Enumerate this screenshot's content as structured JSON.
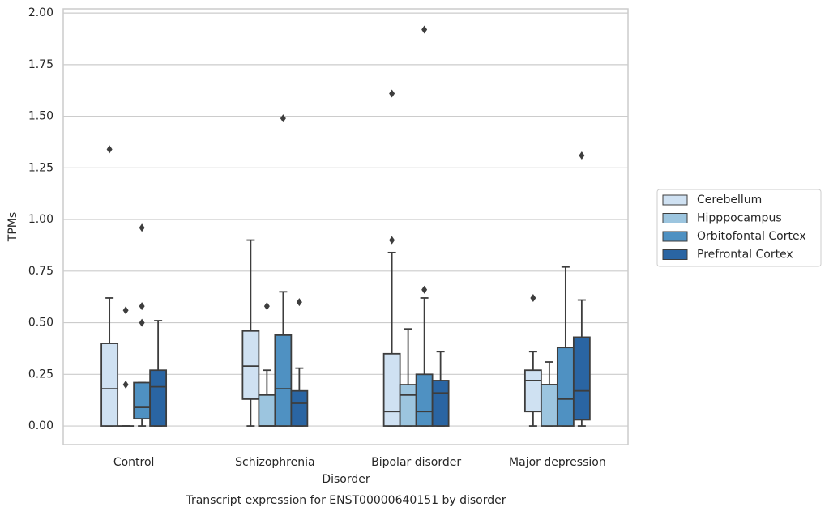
{
  "chart_data": {
    "type": "box",
    "title": "Transcript expression for ENST00000640151 by disorder",
    "x_label": "Disorder",
    "y_label": "TPMs",
    "categories": [
      "Control",
      "Schizophrenia",
      "Bipolar disorder",
      "Major depression"
    ],
    "ylim": [
      -0.09,
      2.02
    ],
    "yticks": [
      {
        "value": 0,
        "label": "0.00"
      },
      {
        "value": 0.25,
        "label": "0.25"
      },
      {
        "value": 0.5,
        "label": "0.50"
      },
      {
        "value": 0.75,
        "label": "0.75"
      },
      {
        "value": 1,
        "label": "1.00"
      },
      {
        "value": 1.25,
        "label": "1.25"
      },
      {
        "value": 1.5,
        "label": "1.50"
      },
      {
        "value": 1.75,
        "label": "1.75"
      },
      {
        "value": 2,
        "label": "2.00"
      }
    ],
    "grid": true,
    "legend": "right",
    "series": [
      {
        "name": "Cerebellum",
        "color": "#cfe1f2",
        "boxes": [
          {
            "whislo": 0,
            "q1": 0,
            "med": 0.18,
            "q3": 0.4,
            "whishi": 0.62,
            "fliers": [
              1.34
            ]
          },
          {
            "whislo": 0,
            "q1": 0.13,
            "med": 0.29,
            "q3": 0.46,
            "whishi": 0.9,
            "fliers": []
          },
          {
            "whislo": 0,
            "q1": 0,
            "med": 0.07,
            "q3": 0.35,
            "whishi": 0.84,
            "fliers": [
              0.9,
              1.61
            ]
          },
          {
            "whislo": 0,
            "q1": 0.07,
            "med": 0.22,
            "q3": 0.27,
            "whishi": 0.36,
            "fliers": [
              0.62
            ]
          }
        ]
      },
      {
        "name": "Hipppocampus",
        "color": "#9cc5df",
        "boxes": [
          {
            "whislo": 0,
            "q1": 0,
            "med": 0,
            "q3": 0,
            "whishi": 0,
            "fliers": [
              0.2,
              0.56
            ]
          },
          {
            "whislo": 0,
            "q1": 0,
            "med": 0,
            "q3": 0.15,
            "whishi": 0.27,
            "fliers": [
              0.58
            ]
          },
          {
            "whislo": 0,
            "q1": 0,
            "med": 0.15,
            "q3": 0.2,
            "whishi": 0.47,
            "fliers": []
          },
          {
            "whislo": 0,
            "q1": 0,
            "med": 0.2,
            "q3": 0.2,
            "whishi": 0.31,
            "fliers": []
          }
        ]
      },
      {
        "name": "Orbitofontal Cortex",
        "color": "#4f91c2",
        "boxes": [
          {
            "whislo": 0,
            "q1": 0.035,
            "med": 0.09,
            "q3": 0.21,
            "whishi": 0.21,
            "fliers": [
              0.5,
              0.58,
              0.96
            ]
          },
          {
            "whislo": 0,
            "q1": 0,
            "med": 0.18,
            "q3": 0.44,
            "whishi": 0.65,
            "fliers": [
              1.49
            ]
          },
          {
            "whislo": 0,
            "q1": 0,
            "med": 0.07,
            "q3": 0.25,
            "whishi": 0.62,
            "fliers": [
              0.66,
              1.92
            ]
          },
          {
            "whislo": 0,
            "q1": 0,
            "med": 0.13,
            "q3": 0.38,
            "whishi": 0.77,
            "fliers": []
          }
        ]
      },
      {
        "name": "Prefrontal Cortex",
        "color": "#2a65a3",
        "boxes": [
          {
            "whislo": 0,
            "q1": 0,
            "med": 0.19,
            "q3": 0.27,
            "whishi": 0.51,
            "fliers": []
          },
          {
            "whislo": 0,
            "q1": 0,
            "med": 0.11,
            "q3": 0.17,
            "whishi": 0.28,
            "fliers": [
              0.6
            ]
          },
          {
            "whislo": 0,
            "q1": 0,
            "med": 0.16,
            "q3": 0.22,
            "whishi": 0.36,
            "fliers": []
          },
          {
            "whislo": 0,
            "q1": 0.03,
            "med": 0.17,
            "q3": 0.43,
            "whishi": 0.61,
            "fliers": [
              1.31
            ]
          }
        ]
      }
    ]
  }
}
